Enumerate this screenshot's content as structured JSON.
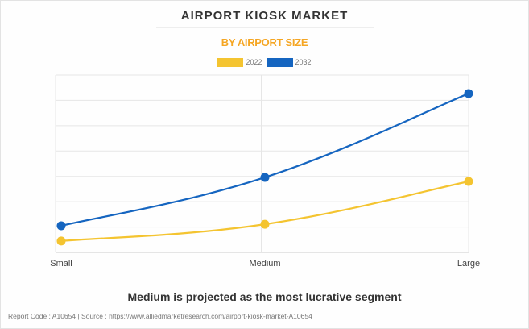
{
  "chart_data": {
    "type": "line",
    "title": "AIRPORT KIOSK MARKET",
    "subtitle": "BY AIRPORT SIZE",
    "categories": [
      "Small",
      "Medium",
      "Large"
    ],
    "series": [
      {
        "name": "2022",
        "color": "#f4c430",
        "values": [
          0.45,
          1.11,
          2.8
        ]
      },
      {
        "name": "2032",
        "color": "#1565c0",
        "values": [
          1.05,
          2.96,
          6.27
        ]
      }
    ],
    "ylim": [
      0,
      7
    ],
    "xlabel": "",
    "ylabel": "",
    "grid": true,
    "legend": "top-center"
  },
  "insight": "Medium is projected as the most lucrative segment",
  "footer": "Report Code : A10654  |  Source : https://www.alliedmarketresearch.com/airport-kiosk-market-A10654"
}
